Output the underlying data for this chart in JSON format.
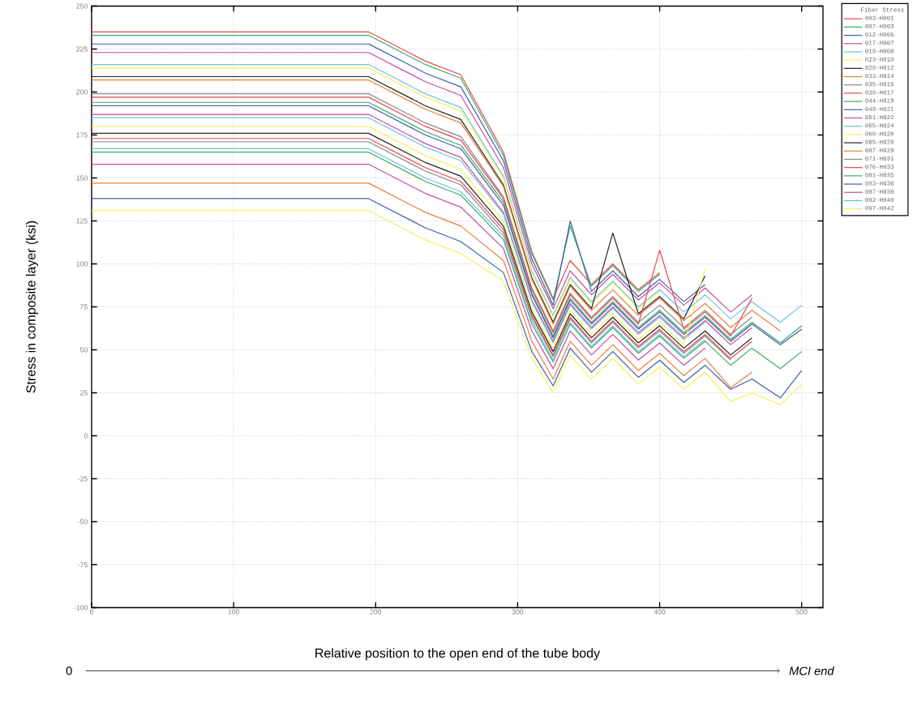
{
  "chart_data": {
    "type": "line",
    "xlabel": "Relative position to the open end of the tube body",
    "ylabel": "Stress in composite layer (ksi)",
    "legend_title": "Fiber Stress",
    "annotations": [
      "0",
      "MCI end"
    ],
    "xlim": [
      0,
      515
    ],
    "ylim": [
      -100,
      250
    ],
    "xticks": [
      0,
      100,
      200,
      300,
      400,
      500
    ],
    "yticks": [
      -100,
      -75,
      -50,
      -25,
      0,
      25,
      50,
      75,
      100,
      125,
      150,
      175,
      200,
      225,
      250
    ],
    "grid": true,
    "legend": "top right",
    "marker": "none",
    "line_style": "solid",
    "x": [
      0,
      195,
      235,
      260,
      290,
      310,
      325,
      337,
      352,
      367,
      385,
      400,
      417,
      432,
      450,
      465,
      485,
      500
    ],
    "series": [
      {
        "name": "003-H001",
        "color": "#e8474f",
        "values": [
          235,
          235,
          218,
          210,
          165,
          107,
          80,
          102,
          88,
          100,
          85,
          95,
          null,
          null,
          null,
          null,
          null,
          null
        ]
      },
      {
        "name": "007-H003",
        "color": "#3caa6a",
        "values": [
          233,
          233,
          216,
          208,
          163,
          106,
          79,
          122,
          87,
          99,
          84,
          94,
          null,
          null,
          null,
          null,
          null,
          null
        ]
      },
      {
        "name": "012-H005",
        "color": "#3d5fa8",
        "values": [
          228,
          228,
          211,
          203,
          160,
          103,
          76,
          125,
          84,
          96,
          81,
          91,
          78,
          88,
          null,
          null,
          null,
          null
        ]
      },
      {
        "name": "017-H007",
        "color": "#c84b9e",
        "values": [
          223,
          223,
          206,
          198,
          156,
          100,
          74,
          96,
          82,
          94,
          79,
          89,
          76,
          86,
          72,
          82,
          null,
          null
        ]
      },
      {
        "name": "019-H008",
        "color": "#6cc3de",
        "values": [
          216,
          216,
          199,
          191,
          151,
          96,
          70,
          92,
          78,
          90,
          75,
          85,
          72,
          82,
          68,
          78,
          66,
          76
        ]
      },
      {
        "name": "023-H010",
        "color": "#f2f25a",
        "values": [
          214,
          214,
          197,
          189,
          150,
          95,
          69,
          91,
          77,
          89,
          74,
          84,
          null,
          null,
          null,
          null,
          null,
          null
        ]
      },
      {
        "name": "028-H012",
        "color": "#222222",
        "values": [
          209,
          209,
          192,
          184,
          146,
          92,
          66,
          88,
          74,
          118,
          71,
          81,
          68,
          93,
          null,
          null,
          null,
          null
        ]
      },
      {
        "name": "033-H014",
        "color": "#e8803a",
        "values": [
          207,
          207,
          190,
          182,
          145,
          91,
          65,
          87,
          73,
          85,
          70,
          80,
          67,
          77,
          63,
          73,
          61,
          null
        ]
      },
      {
        "name": "035-H015",
        "color": "#8a8a8a",
        "values": [
          199,
          199,
          182,
          174,
          139,
          86,
          61,
          83,
          69,
          81,
          66,
          76,
          63,
          73,
          59,
          69,
          null,
          null
        ]
      },
      {
        "name": "039-H017",
        "color": "#e8474f",
        "values": [
          197,
          197,
          180,
          172,
          138,
          85,
          60,
          82,
          68,
          80,
          65,
          108,
          62,
          72,
          58,
          80,
          null,
          null
        ]
      },
      {
        "name": "044-H019",
        "color": "#3caa6a",
        "values": [
          194,
          194,
          177,
          169,
          136,
          83,
          58,
          80,
          66,
          78,
          63,
          73,
          60,
          70,
          56,
          66,
          54,
          64
        ]
      },
      {
        "name": "049-H021",
        "color": "#3d5fa8",
        "values": [
          192,
          192,
          175,
          167,
          134,
          82,
          57,
          79,
          65,
          77,
          62,
          72,
          59,
          69,
          55,
          65,
          53,
          62
        ]
      },
      {
        "name": "051-H022",
        "color": "#c84b9e",
        "values": [
          187,
          187,
          170,
          162,
          130,
          79,
          55,
          77,
          63,
          75,
          60,
          70,
          57,
          67,
          53,
          63,
          null,
          null
        ]
      },
      {
        "name": "055-H024",
        "color": "#6cc3de",
        "values": [
          185,
          185,
          168,
          160,
          129,
          78,
          54,
          76,
          62,
          74,
          59,
          69,
          56,
          66,
          null,
          null,
          null,
          null
        ]
      },
      {
        "name": "060-H026",
        "color": "#f2f25a",
        "values": [
          180,
          180,
          163,
          155,
          125,
          74,
          51,
          73,
          59,
          71,
          56,
          66,
          53,
          97,
          null,
          null,
          null,
          null
        ]
      },
      {
        "name": "065-H028",
        "color": "#222222",
        "values": [
          176,
          176,
          159,
          151,
          122,
          72,
          49,
          71,
          57,
          69,
          54,
          64,
          51,
          61,
          47,
          57,
          null,
          null
        ]
      },
      {
        "name": "067-H029",
        "color": "#e8803a",
        "values": [
          147,
          147,
          130,
          122,
          102,
          55,
          33,
          55,
          41,
          53,
          38,
          48,
          35,
          45,
          28,
          37,
          null,
          null
        ]
      },
      {
        "name": "071-H031",
        "color": "#8a8a8a",
        "values": [
          171,
          171,
          154,
          146,
          118,
          69,
          46,
          68,
          54,
          66,
          51,
          61,
          48,
          58,
          44,
          null,
          null,
          null
        ]
      },
      {
        "name": "076-H033",
        "color": "#e8474f",
        "values": [
          173,
          173,
          156,
          148,
          120,
          70,
          47,
          69,
          55,
          67,
          52,
          62,
          49,
          59,
          45,
          55,
          null,
          null
        ]
      },
      {
        "name": "081-H035",
        "color": "#3caa6a",
        "values": [
          165,
          165,
          148,
          140,
          114,
          65,
          43,
          65,
          51,
          63,
          48,
          58,
          45,
          55,
          41,
          51,
          39,
          49
        ]
      },
      {
        "name": "083-H036",
        "color": "#3d5fa8",
        "values": [
          138,
          138,
          121,
          113,
          95,
          49,
          29,
          51,
          37,
          49,
          34,
          44,
          31,
          41,
          27,
          33,
          22,
          38
        ]
      },
      {
        "name": "087-H038",
        "color": "#c84b9e",
        "values": [
          158,
          158,
          141,
          133,
          109,
          61,
          39,
          61,
          47,
          59,
          44,
          54,
          41,
          51,
          null,
          null,
          null,
          null
        ]
      },
      {
        "name": "092-H040",
        "color": "#6cc3de",
        "values": [
          167,
          167,
          150,
          142,
          116,
          67,
          44,
          66,
          52,
          64,
          49,
          59,
          46,
          56,
          null,
          null,
          null,
          null
        ]
      },
      {
        "name": "097-H042",
        "color": "#f2f25a",
        "values": [
          131,
          131,
          114,
          106,
          90,
          45,
          25,
          47,
          33,
          45,
          30,
          40,
          27,
          37,
          20,
          25,
          18,
          30
        ]
      }
    ]
  }
}
